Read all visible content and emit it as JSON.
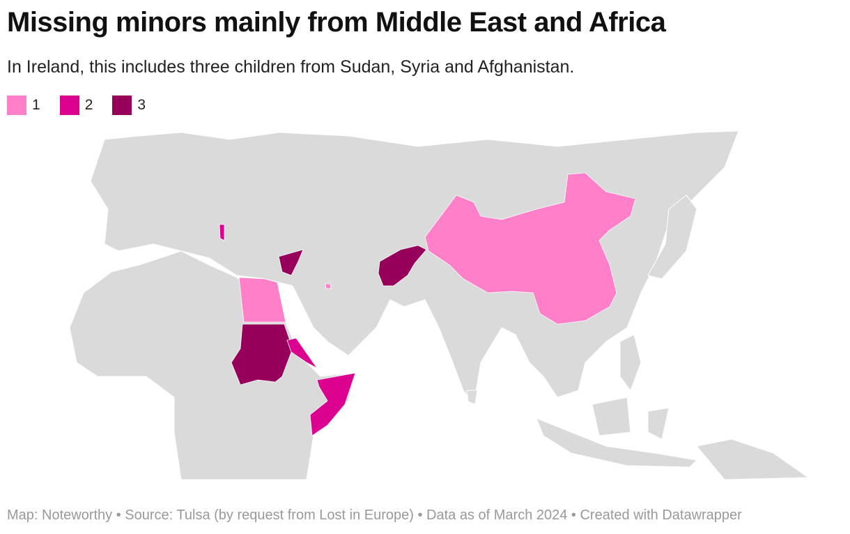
{
  "header": {
    "title": "Missing minors mainly from Middle East and Africa",
    "subtitle": "In Ireland, this includes three children from Sudan, Syria and Afghanistan."
  },
  "legend": [
    {
      "value": 1,
      "color": "#ff80c8"
    },
    {
      "value": 2,
      "color": "#dc0290"
    },
    {
      "value": 3,
      "color": "#97005a"
    }
  ],
  "regions": {
    "values": [
      1,
      3,
      2,
      2,
      3,
      1,
      3,
      2,
      1
    ]
  },
  "footer": "Map: Noteworthy • Source: Tulsa (by request from Lost in Europe) • Data as of March 2024 • Created with Datawrapper"
}
